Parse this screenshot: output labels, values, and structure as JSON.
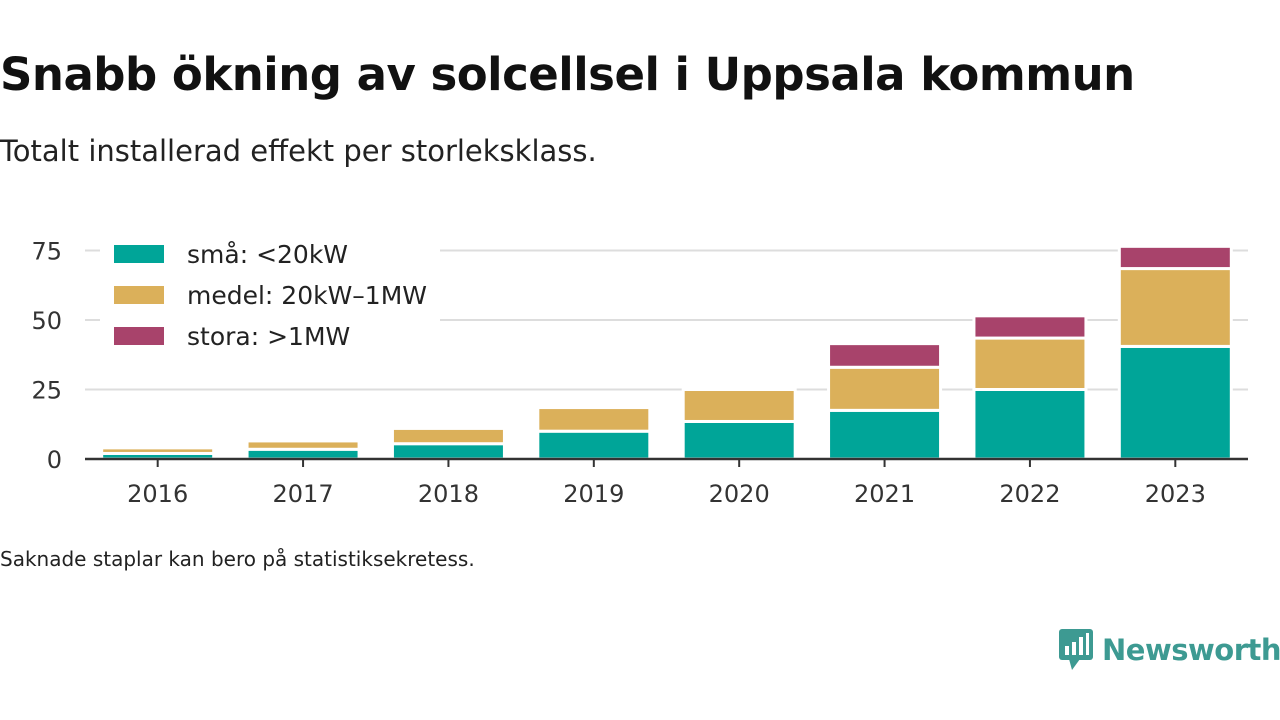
{
  "header": {
    "title": "Snabb ökning av solcellsel i Uppsala kommun",
    "subtitle": "Totalt installerad effekt per storleksklass."
  },
  "footer": {
    "note": "Saknade staplar kan bero på statistiksekretess.",
    "brand": "Newsworthy"
  },
  "colors": {
    "small": "#00a598",
    "medium": "#dbb05a",
    "large": "#a8436b",
    "brand": "#3d9a92"
  },
  "chart_data": {
    "type": "bar",
    "stacked": true,
    "categories": [
      "2016",
      "2017",
      "2018",
      "2019",
      "2020",
      "2021",
      "2022",
      "2023"
    ],
    "series": [
      {
        "name": "små: <20kW",
        "color": "#00a598",
        "values": [
          2,
          3.5,
          5.5,
          10,
          13.5,
          17.5,
          25,
          40.5
        ]
      },
      {
        "name": "medel: 20kW–1MW",
        "color": "#dbb05a",
        "values": [
          2,
          3,
          5.5,
          8.5,
          11.5,
          15.5,
          18.5,
          28
        ]
      },
      {
        "name": "stora: >1MW",
        "color": "#a8436b",
        "values": [
          0,
          0,
          0,
          0,
          0,
          8.5,
          8,
          8
        ]
      }
    ],
    "yticks": [
      0,
      25,
      50,
      75
    ],
    "ylim": [
      0,
      80
    ],
    "grid": true,
    "legend": "top-left",
    "xlabel": "",
    "ylabel": ""
  }
}
